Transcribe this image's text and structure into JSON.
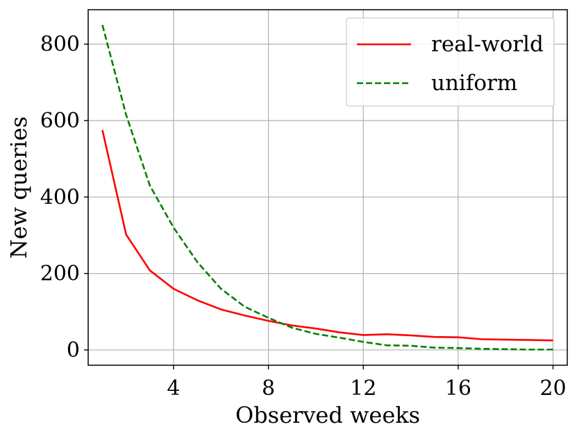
{
  "chart_data": {
    "type": "line",
    "xlabel": "Observed weeks",
    "ylabel": "New queries",
    "xlim": [
      0.4,
      20.6
    ],
    "ylim": [
      -40,
      890
    ],
    "xticks": [
      4,
      8,
      12,
      16,
      20
    ],
    "yticks": [
      0,
      200,
      400,
      600,
      800
    ],
    "grid": true,
    "legend_position": "top-right",
    "series": [
      {
        "name": "real-world",
        "color": "#ff0000",
        "dash": "solid",
        "x": [
          1,
          2,
          3,
          4,
          5,
          6,
          7,
          8,
          9,
          10,
          11,
          12,
          13,
          14,
          15,
          16,
          17,
          18,
          19,
          20
        ],
        "values": [
          575,
          302,
          208,
          160,
          130,
          106,
          90,
          76,
          64,
          56,
          46,
          39,
          41,
          38,
          34,
          33,
          28,
          27,
          26,
          25
        ]
      },
      {
        "name": "uniform",
        "color": "#008000",
        "dash": "dashed",
        "x": [
          1,
          2,
          3,
          4,
          5,
          6,
          7,
          8,
          9,
          10,
          11,
          12,
          13,
          14,
          15,
          16,
          17,
          18,
          19,
          20
        ],
        "values": [
          850,
          615,
          430,
          320,
          230,
          160,
          113,
          84,
          58,
          42,
          32,
          21,
          12,
          11,
          6,
          5,
          3,
          2,
          1,
          1
        ]
      }
    ]
  }
}
